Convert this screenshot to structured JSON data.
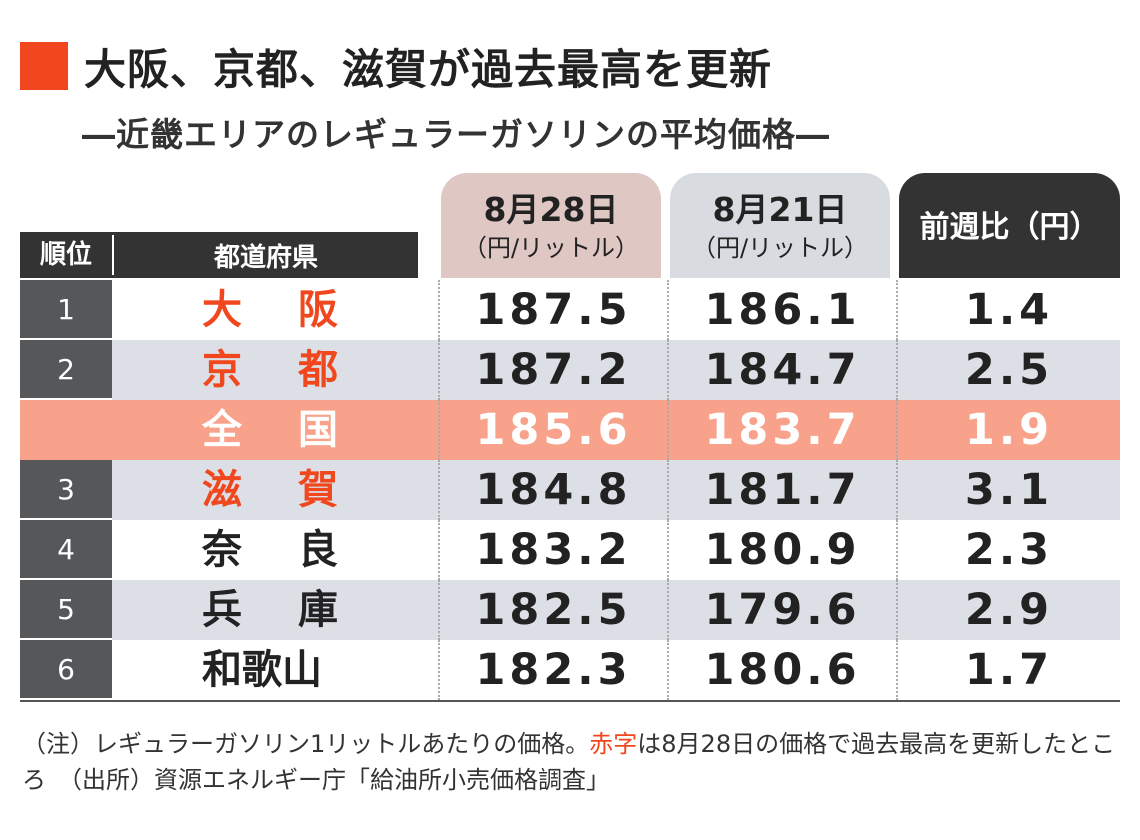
{
  "title": "大阪、京都、滋賀が過去最高を更新",
  "subtitle": "―近畿エリアのレギュラーガソリンの平均価格―",
  "headers": {
    "rank": "順位",
    "prefecture": "都道府県",
    "col1_date": "8月28日",
    "col1_unit": "（円/リットル）",
    "col2_date": "8月21日",
    "col2_unit": "（円/リットル）",
    "col3": "前週比（円）"
  },
  "colors": {
    "accent": "#f0471e",
    "national_row": "#f9a28b",
    "header_dark": "#333333",
    "tab1": "#dfc7c4",
    "tab2": "#d8dce1",
    "stripe": "#dce0e6"
  },
  "chart_data": {
    "type": "table",
    "columns": [
      "順位",
      "都道府県",
      "8月28日（円/リットル）",
      "8月21日（円/リットル）",
      "前週比（円）"
    ],
    "rows": [
      {
        "rank": "1",
        "chars": [
          "大",
          "阪"
        ],
        "aug28": "187.5",
        "aug21": "186.1",
        "diff": "1.4",
        "record": true
      },
      {
        "rank": "2",
        "chars": [
          "京",
          "都"
        ],
        "aug28": "187.2",
        "aug21": "184.7",
        "diff": "2.5",
        "record": true
      },
      {
        "rank": "",
        "chars": [
          "全",
          "国"
        ],
        "aug28": "185.6",
        "aug21": "183.7",
        "diff": "1.9",
        "national": true
      },
      {
        "rank": "3",
        "chars": [
          "滋",
          "賀"
        ],
        "aug28": "184.8",
        "aug21": "181.7",
        "diff": "3.1",
        "record": true
      },
      {
        "rank": "4",
        "chars": [
          "奈",
          "良"
        ],
        "aug28": "183.2",
        "aug21": "180.9",
        "diff": "2.3"
      },
      {
        "rank": "5",
        "chars": [
          "兵",
          "庫"
        ],
        "aug28": "182.5",
        "aug21": "179.6",
        "diff": "2.9"
      },
      {
        "rank": "6",
        "chars": [
          "和歌山"
        ],
        "aug28": "182.3",
        "aug21": "180.6",
        "diff": "1.7"
      }
    ]
  },
  "note": {
    "part1": "（注）レギュラーガソリン1リットルあたりの価格。",
    "red_part": "赤字",
    "part2": "は8月28日の価格で過去最高を更新したところ　（出所）資源エネルギー庁「給油所小売価格調査」"
  }
}
